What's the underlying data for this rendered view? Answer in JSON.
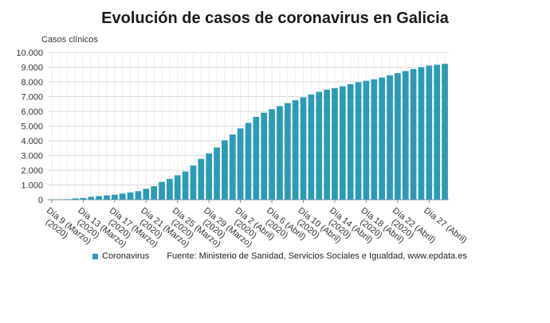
{
  "chart_data": {
    "type": "bar",
    "title": "Evolución de casos de coronavirus en Galicia",
    "ylabel": "Casos clínicos",
    "ylim": [
      0,
      10000
    ],
    "yticks": [
      "0",
      "1.000",
      "2.000",
      "3.000",
      "4.000",
      "5.000",
      "6.000",
      "7.000",
      "8.000",
      "9.000",
      "10.000"
    ],
    "grid": true,
    "x_tick_labels": [
      [
        "Día 9 (Marzo)",
        "(2020)"
      ],
      [
        "Día 13 (Marzo)",
        "(2020)"
      ],
      [
        "Día 17 (Marzo)",
        "(2020)"
      ],
      [
        "Día 21 (Marzo)",
        "(2020)"
      ],
      [
        "Día 25 (Marzo)",
        "(2020)"
      ],
      [
        "Día 29 (Marzo)",
        "(2020)"
      ],
      [
        "Día 2 (Abril)",
        "(2020)"
      ],
      [
        "Día 6 (Abril)",
        "(2020)"
      ],
      [
        "Día 10 (Abril)",
        "(2020)"
      ],
      [
        "Día 14 (Abril)",
        "(2020)"
      ],
      [
        "Día 18 (Abril)",
        "(2020)"
      ],
      [
        "Día 22 (Abril)",
        "(2020)"
      ],
      [
        "Día 27 (Abril)"
      ]
    ],
    "series": [
      {
        "name": "Coronavirus",
        "color": "#2e9ab8",
        "values": [
          6,
          18,
          35,
          85,
          115,
          195,
          245,
          290,
          340,
          415,
          495,
          580,
          740,
          915,
          1210,
          1415,
          1655,
          1915,
          2320,
          2770,
          3140,
          3545,
          4035,
          4430,
          4845,
          5215,
          5625,
          5910,
          6150,
          6360,
          6560,
          6760,
          6950,
          7150,
          7330,
          7470,
          7580,
          7700,
          7850,
          7980,
          8080,
          8180,
          8300,
          8450,
          8600,
          8740,
          8880,
          9000,
          9110,
          9170,
          9230
        ]
      }
    ],
    "legend": "bottom-left",
    "source": "Fuente: Ministerio de Sanidad, Servicios Sociales e Igualdad, www.epdata.es"
  }
}
